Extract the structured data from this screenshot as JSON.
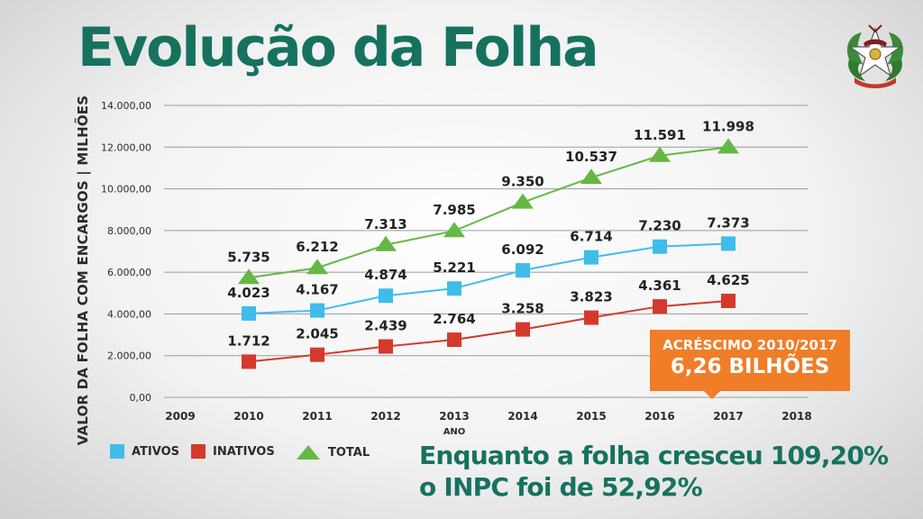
{
  "header": {
    "title": "Evolução da Folha"
  },
  "chart_data": {
    "type": "line",
    "title": "Evolução da Folha",
    "xlabel": "ANO",
    "ylabel": "VALOR DA FOLHA COM ENCARGOS | MILHÕES",
    "x_ticks": [
      "2009",
      "2010",
      "2011",
      "2012",
      "2013",
      "2014",
      "2015",
      "2016",
      "2017",
      "2018"
    ],
    "x": [
      2010,
      2011,
      2012,
      2013,
      2014,
      2015,
      2016,
      2017
    ],
    "y_ticks": [
      "0,00",
      "2.000,00",
      "4.000,00",
      "6.000,00",
      "8.000,00",
      "10.000,00",
      "12.000,00",
      "14.000,00"
    ],
    "xlim": [
      2009,
      2018
    ],
    "ylim": [
      0,
      14000
    ],
    "grid": true,
    "legend_position": "bottom-left",
    "series": [
      {
        "name": "ATIVOS",
        "color": "#3fbdea",
        "marker": "square",
        "values": [
          4023,
          4167,
          4874,
          5221,
          6092,
          6714,
          7230,
          7373
        ],
        "labels": [
          "4.023",
          "4.167",
          "4.874",
          "5.221",
          "6.092",
          "6.714",
          "7.230",
          "7.373"
        ]
      },
      {
        "name": "INATIVOS",
        "color": "#d43a2c",
        "marker": "square",
        "values": [
          1712,
          2045,
          2439,
          2764,
          3258,
          3823,
          4361,
          4625
        ],
        "labels": [
          "1.712",
          "2.045",
          "2.439",
          "2.764",
          "3.258",
          "3.823",
          "4.361",
          "4.625"
        ]
      },
      {
        "name": "TOTAL",
        "color": "#65b845",
        "marker": "triangle",
        "values": [
          5735,
          6212,
          7313,
          7985,
          9350,
          10537,
          11591,
          11998
        ],
        "labels": [
          "5.735",
          "6.212",
          "7.313",
          "7.985",
          "9.350",
          "10.537",
          "11.591",
          "11.998"
        ]
      }
    ],
    "annotation": {
      "line1": "ACRÉSCIMO 2010/2017",
      "line2": "6,26 BILHÕES",
      "color": "#f07d28"
    }
  },
  "footnote": {
    "line1": "Enquanto a folha cresceu 109,20%",
    "line2": "o INPC foi de 52,92%"
  },
  "emblem": {
    "icon": "coat-of-arms-icon"
  },
  "colors": {
    "title": "#16725f",
    "grid": "#9a9a9a",
    "text": "#2b2b2b"
  }
}
